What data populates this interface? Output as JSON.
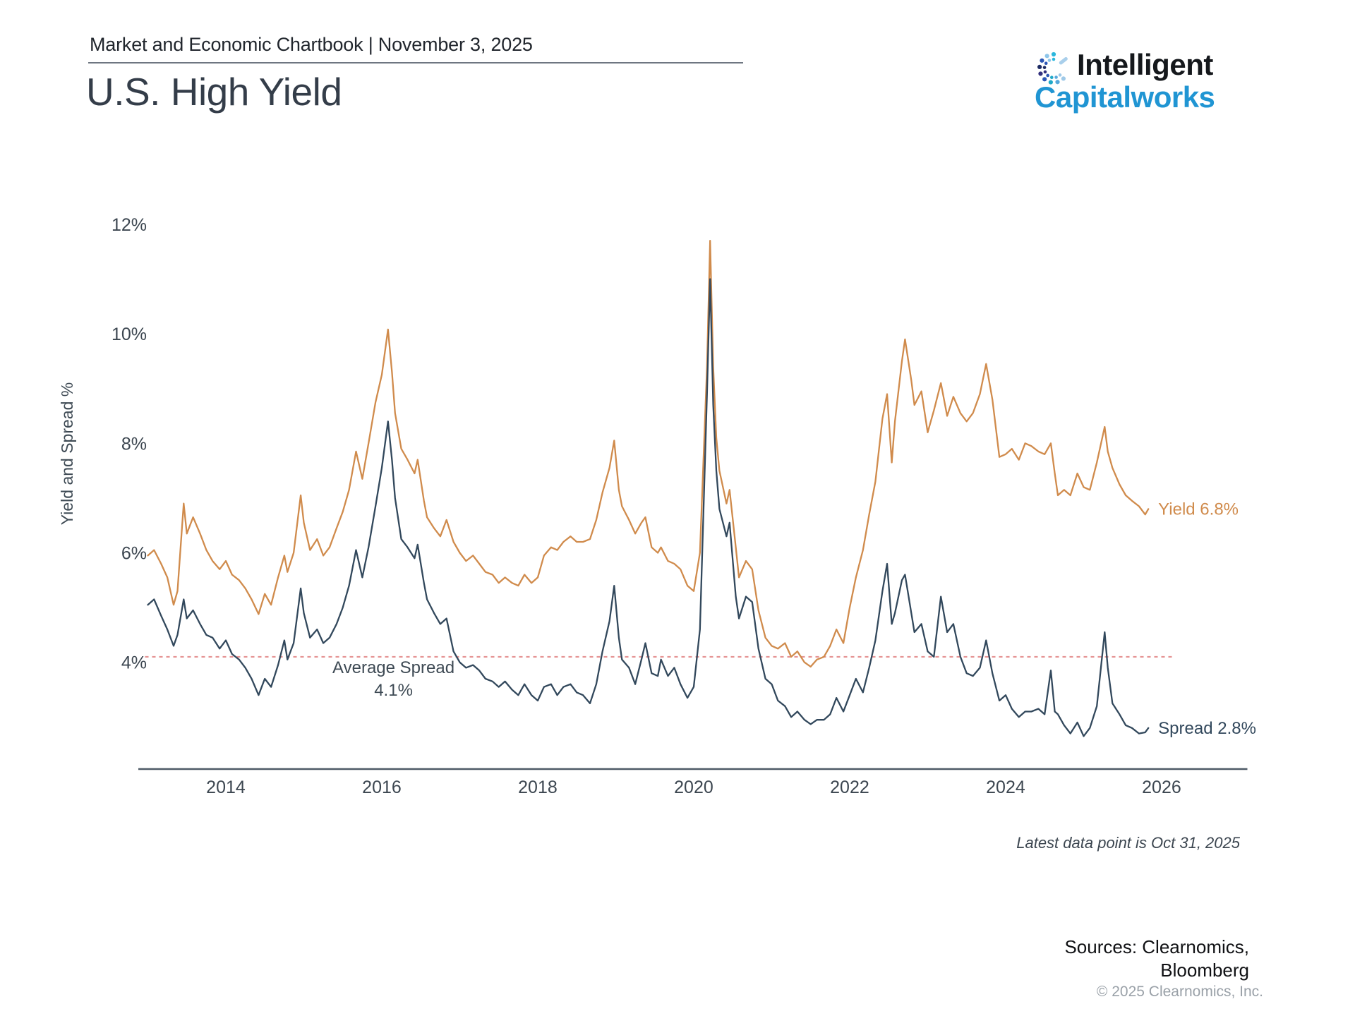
{
  "header": {
    "label": "Market and Economic Chartbook | November 3, 2025"
  },
  "page_title": "U.S. High Yield",
  "logo": {
    "word1": "Intelligent",
    "word2": "Capitalworks",
    "accent_color": "#2095d3"
  },
  "annotations": {
    "latest_point": "Latest data point is Oct 31, 2025"
  },
  "sources": {
    "line1": "Sources: Clearnomics,",
    "line2": "Bloomberg",
    "copyright": "© 2025 Clearnomics, Inc."
  },
  "colors": {
    "yield": "#d08b4c",
    "spread": "#32485c",
    "average_line": "#e59292",
    "axis": "#4e5a66",
    "tick_text": "#3c4650"
  },
  "chart_data": {
    "type": "line",
    "title": "U.S. High Yield",
    "xlabel": "",
    "ylabel": "Yield and Spread %",
    "grid": false,
    "legend_position": "end-of-line labels",
    "x_axis": {
      "min": 2013.0,
      "max": 2027.1,
      "ticks": [
        2014,
        2016,
        2018,
        2020,
        2022,
        2024,
        2026
      ]
    },
    "y_axis": {
      "min": 2.05,
      "max": 12.45,
      "ticks": [
        {
          "value": 4,
          "label": "4%"
        },
        {
          "value": 6,
          "label": "6%"
        },
        {
          "value": 8,
          "label": "8%"
        },
        {
          "value": 10,
          "label": "10%"
        },
        {
          "value": 12,
          "label": "12%"
        }
      ]
    },
    "average_line": {
      "value": 4.1,
      "label_line1": "Average Spread",
      "label_line2": "4.1%",
      "color": "#e59292",
      "label_anchor_year": 2016.15
    },
    "series": [
      {
        "name": "Yield",
        "color": "#d08b4c",
        "end_label": "Yield 6.8%",
        "last_value": 6.8
      },
      {
        "name": "Spread",
        "color": "#32485c",
        "end_label": "Spread 2.8%",
        "last_value": 2.8
      }
    ],
    "points_format": [
      "year",
      "yield_pct",
      "spread_pct"
    ],
    "points": [
      [
        2013.0,
        5.95,
        5.05
      ],
      [
        2013.08,
        6.05,
        5.15
      ],
      [
        2013.17,
        5.8,
        4.85
      ],
      [
        2013.25,
        5.55,
        4.6
      ],
      [
        2013.33,
        5.05,
        4.3
      ],
      [
        2013.38,
        5.3,
        4.5
      ],
      [
        2013.46,
        6.9,
        5.15
      ],
      [
        2013.5,
        6.35,
        4.8
      ],
      [
        2013.58,
        6.65,
        4.95
      ],
      [
        2013.67,
        6.35,
        4.7
      ],
      [
        2013.75,
        6.05,
        4.5
      ],
      [
        2013.83,
        5.85,
        4.45
      ],
      [
        2013.92,
        5.7,
        4.25
      ],
      [
        2014.0,
        5.85,
        4.4
      ],
      [
        2014.08,
        5.6,
        4.15
      ],
      [
        2014.17,
        5.5,
        4.05
      ],
      [
        2014.25,
        5.35,
        3.9
      ],
      [
        2014.33,
        5.15,
        3.7
      ],
      [
        2014.42,
        4.88,
        3.4
      ],
      [
        2014.5,
        5.25,
        3.7
      ],
      [
        2014.58,
        5.05,
        3.55
      ],
      [
        2014.67,
        5.55,
        3.95
      ],
      [
        2014.75,
        5.95,
        4.4
      ],
      [
        2014.79,
        5.65,
        4.05
      ],
      [
        2014.87,
        6.0,
        4.35
      ],
      [
        2014.96,
        7.05,
        5.35
      ],
      [
        2015.0,
        6.55,
        4.9
      ],
      [
        2015.08,
        6.05,
        4.45
      ],
      [
        2015.17,
        6.25,
        4.6
      ],
      [
        2015.25,
        5.95,
        4.35
      ],
      [
        2015.33,
        6.1,
        4.45
      ],
      [
        2015.42,
        6.45,
        4.7
      ],
      [
        2015.5,
        6.75,
        5.0
      ],
      [
        2015.58,
        7.15,
        5.4
      ],
      [
        2015.67,
        7.85,
        6.05
      ],
      [
        2015.75,
        7.35,
        5.55
      ],
      [
        2015.83,
        8.0,
        6.1
      ],
      [
        2015.92,
        8.75,
        6.85
      ],
      [
        2016.0,
        9.25,
        7.55
      ],
      [
        2016.08,
        10.08,
        8.4
      ],
      [
        2016.13,
        9.3,
        7.7
      ],
      [
        2016.17,
        8.55,
        7.0
      ],
      [
        2016.25,
        7.9,
        6.25
      ],
      [
        2016.33,
        7.7,
        6.1
      ],
      [
        2016.42,
        7.45,
        5.9
      ],
      [
        2016.46,
        7.7,
        6.15
      ],
      [
        2016.54,
        6.95,
        5.45
      ],
      [
        2016.58,
        6.65,
        5.15
      ],
      [
        2016.67,
        6.45,
        4.9
      ],
      [
        2016.75,
        6.3,
        4.7
      ],
      [
        2016.83,
        6.6,
        4.8
      ],
      [
        2016.92,
        6.2,
        4.2
      ],
      [
        2017.0,
        6.0,
        4.0
      ],
      [
        2017.08,
        5.85,
        3.9
      ],
      [
        2017.17,
        5.95,
        3.95
      ],
      [
        2017.25,
        5.8,
        3.85
      ],
      [
        2017.33,
        5.65,
        3.7
      ],
      [
        2017.42,
        5.6,
        3.65
      ],
      [
        2017.5,
        5.45,
        3.55
      ],
      [
        2017.58,
        5.55,
        3.65
      ],
      [
        2017.67,
        5.45,
        3.5
      ],
      [
        2017.75,
        5.4,
        3.4
      ],
      [
        2017.83,
        5.6,
        3.6
      ],
      [
        2017.92,
        5.45,
        3.4
      ],
      [
        2018.0,
        5.55,
        3.3
      ],
      [
        2018.08,
        5.95,
        3.55
      ],
      [
        2018.17,
        6.1,
        3.6
      ],
      [
        2018.25,
        6.05,
        3.4
      ],
      [
        2018.33,
        6.2,
        3.55
      ],
      [
        2018.42,
        6.3,
        3.6
      ],
      [
        2018.5,
        6.2,
        3.45
      ],
      [
        2018.58,
        6.2,
        3.4
      ],
      [
        2018.67,
        6.25,
        3.25
      ],
      [
        2018.75,
        6.6,
        3.6
      ],
      [
        2018.83,
        7.1,
        4.2
      ],
      [
        2018.92,
        7.55,
        4.75
      ],
      [
        2018.98,
        8.05,
        5.4
      ],
      [
        2019.04,
        7.15,
        4.45
      ],
      [
        2019.08,
        6.85,
        4.05
      ],
      [
        2019.17,
        6.6,
        3.9
      ],
      [
        2019.25,
        6.35,
        3.6
      ],
      [
        2019.33,
        6.55,
        4.05
      ],
      [
        2019.38,
        6.65,
        4.35
      ],
      [
        2019.46,
        6.1,
        3.8
      ],
      [
        2019.54,
        6.0,
        3.75
      ],
      [
        2019.58,
        6.1,
        4.05
      ],
      [
        2019.67,
        5.85,
        3.75
      ],
      [
        2019.75,
        5.8,
        3.9
      ],
      [
        2019.83,
        5.7,
        3.6
      ],
      [
        2019.92,
        5.4,
        3.35
      ],
      [
        2020.0,
        5.3,
        3.55
      ],
      [
        2020.08,
        6.0,
        4.6
      ],
      [
        2020.17,
        9.4,
        8.9
      ],
      [
        2020.21,
        11.7,
        11.0
      ],
      [
        2020.25,
        9.4,
        8.7
      ],
      [
        2020.29,
        8.1,
        7.5
      ],
      [
        2020.33,
        7.5,
        6.8
      ],
      [
        2020.42,
        6.9,
        6.3
      ],
      [
        2020.46,
        7.15,
        6.55
      ],
      [
        2020.54,
        6.1,
        5.2
      ],
      [
        2020.58,
        5.55,
        4.8
      ],
      [
        2020.67,
        5.85,
        5.2
      ],
      [
        2020.75,
        5.7,
        5.1
      ],
      [
        2020.83,
        4.95,
        4.25
      ],
      [
        2020.92,
        4.45,
        3.7
      ],
      [
        2021.0,
        4.3,
        3.6
      ],
      [
        2021.08,
        4.25,
        3.3
      ],
      [
        2021.17,
        4.35,
        3.2
      ],
      [
        2021.25,
        4.1,
        3.0
      ],
      [
        2021.33,
        4.2,
        3.1
      ],
      [
        2021.42,
        4.0,
        2.95
      ],
      [
        2021.5,
        3.92,
        2.87
      ],
      [
        2021.58,
        4.05,
        2.95
      ],
      [
        2021.67,
        4.1,
        2.95
      ],
      [
        2021.75,
        4.3,
        3.05
      ],
      [
        2021.83,
        4.6,
        3.35
      ],
      [
        2021.92,
        4.35,
        3.1
      ],
      [
        2022.0,
        5.0,
        3.4
      ],
      [
        2022.08,
        5.55,
        3.7
      ],
      [
        2022.17,
        6.05,
        3.45
      ],
      [
        2022.25,
        6.7,
        3.9
      ],
      [
        2022.33,
        7.3,
        4.4
      ],
      [
        2022.42,
        8.45,
        5.3
      ],
      [
        2022.48,
        8.9,
        5.8
      ],
      [
        2022.54,
        7.65,
        4.7
      ],
      [
        2022.58,
        8.4,
        4.9
      ],
      [
        2022.67,
        9.5,
        5.5
      ],
      [
        2022.71,
        9.9,
        5.6
      ],
      [
        2022.79,
        9.15,
        4.9
      ],
      [
        2022.83,
        8.7,
        4.55
      ],
      [
        2022.92,
        8.95,
        4.7
      ],
      [
        2023.0,
        8.2,
        4.2
      ],
      [
        2023.08,
        8.6,
        4.1
      ],
      [
        2023.17,
        9.1,
        5.2
      ],
      [
        2023.25,
        8.5,
        4.55
      ],
      [
        2023.33,
        8.85,
        4.7
      ],
      [
        2023.42,
        8.55,
        4.1
      ],
      [
        2023.5,
        8.4,
        3.8
      ],
      [
        2023.58,
        8.55,
        3.75
      ],
      [
        2023.67,
        8.9,
        3.9
      ],
      [
        2023.75,
        9.45,
        4.4
      ],
      [
        2023.83,
        8.8,
        3.8
      ],
      [
        2023.92,
        7.75,
        3.3
      ],
      [
        2024.0,
        7.8,
        3.4
      ],
      [
        2024.08,
        7.9,
        3.15
      ],
      [
        2024.17,
        7.7,
        3.0
      ],
      [
        2024.25,
        8.0,
        3.1
      ],
      [
        2024.33,
        7.95,
        3.1
      ],
      [
        2024.42,
        7.85,
        3.15
      ],
      [
        2024.5,
        7.8,
        3.05
      ],
      [
        2024.58,
        8.0,
        3.85
      ],
      [
        2024.63,
        7.45,
        3.1
      ],
      [
        2024.67,
        7.05,
        3.05
      ],
      [
        2024.75,
        7.15,
        2.85
      ],
      [
        2024.83,
        7.05,
        2.7
      ],
      [
        2024.92,
        7.45,
        2.9
      ],
      [
        2025.0,
        7.2,
        2.65
      ],
      [
        2025.08,
        7.15,
        2.8
      ],
      [
        2025.17,
        7.65,
        3.2
      ],
      [
        2025.27,
        8.3,
        4.55
      ],
      [
        2025.31,
        7.85,
        3.9
      ],
      [
        2025.37,
        7.55,
        3.25
      ],
      [
        2025.46,
        7.25,
        3.05
      ],
      [
        2025.54,
        7.05,
        2.85
      ],
      [
        2025.62,
        6.95,
        2.8
      ],
      [
        2025.71,
        6.85,
        2.7
      ],
      [
        2025.79,
        6.7,
        2.72
      ],
      [
        2025.83,
        6.8,
        2.8
      ]
    ]
  }
}
